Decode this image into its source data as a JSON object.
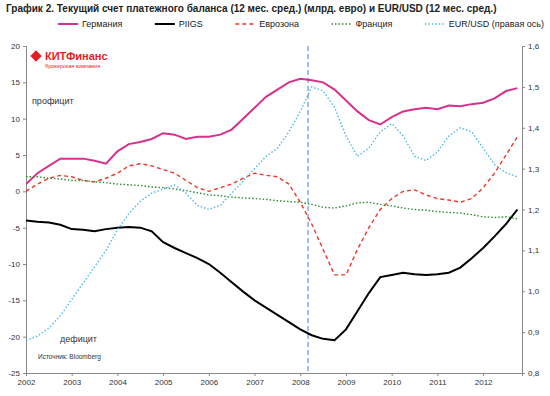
{
  "chart_data": {
    "type": "line",
    "title": "График 2. Текущий счет платежного баланса (12 мес. сред.) (млрд. евро) и EUR/USD (12 мес. сред.)",
    "logo": "КИТФинанс",
    "logo_subtitle": "брокерская компания",
    "annotations": [
      "профицит",
      "дефицит",
      "Источник: Bloomberg"
    ],
    "vline_x": 2008.17,
    "legend": "top",
    "grid": false,
    "x": [
      2002,
      2002.25,
      2002.5,
      2002.75,
      2003,
      2003.25,
      2003.5,
      2003.75,
      2004,
      2004.25,
      2004.5,
      2004.75,
      2005,
      2005.25,
      2005.5,
      2005.75,
      2006,
      2006.25,
      2006.5,
      2006.75,
      2007,
      2007.25,
      2007.5,
      2007.75,
      2008,
      2008.25,
      2008.5,
      2008.75,
      2009,
      2009.25,
      2009.5,
      2009.75,
      2010,
      2010.25,
      2010.5,
      2010.75,
      2011,
      2011.25,
      2011.5,
      2011.75,
      2012,
      2012.25,
      2012.5,
      2012.75
    ],
    "xlim": [
      2002,
      2012.85
    ],
    "xticks": [
      2002,
      2003,
      2004,
      2005,
      2006,
      2007,
      2008,
      2009,
      2010,
      2011,
      2012
    ],
    "ylim": [
      -25,
      20
    ],
    "yticks": [
      -25,
      -20,
      -15,
      -10,
      -5,
      0,
      5,
      10,
      15,
      20
    ],
    "y2lim": [
      0.8,
      1.6
    ],
    "y2ticks": [
      {
        "value": 0.8,
        "label": "0,8"
      },
      {
        "value": 0.9,
        "label": "0,9"
      },
      {
        "value": 1.0,
        "label": "1,0"
      },
      {
        "value": 1.1,
        "label": "1,1"
      },
      {
        "value": 1.2,
        "label": "1,2"
      },
      {
        "value": 1.3,
        "label": "1,3"
      },
      {
        "value": 1.4,
        "label": "1,4"
      },
      {
        "value": 1.5,
        "label": "1,5"
      },
      {
        "value": 1.6,
        "label": "1,6"
      }
    ],
    "series": [
      {
        "name": "Германия",
        "color": "#d6318c",
        "line_style": "solid",
        "values": [
          1,
          2.5,
          3.5,
          4.5,
          4.5,
          4.5,
          4.2,
          3.8,
          5.5,
          6.5,
          6.8,
          7.2,
          8,
          7.8,
          7.2,
          7.5,
          7.5,
          7.8,
          8.5,
          10,
          11.5,
          13,
          14,
          15,
          15.5,
          15.3,
          15,
          14,
          12.5,
          11,
          9.8,
          9.2,
          10.2,
          11,
          11.3,
          11.5,
          11.3,
          11.8,
          11.7,
          12,
          12.2,
          12.8,
          13.8,
          14.2
        ]
      },
      {
        "name": "PIIGS",
        "color": "#000000",
        "line_style": "solid",
        "values": [
          -4,
          -4.2,
          -4.3,
          -4.6,
          -5.2,
          -5.3,
          -5.5,
          -5.2,
          -5,
          -4.9,
          -5,
          -5.5,
          -7,
          -7.8,
          -8.5,
          -9.2,
          -10,
          -11.2,
          -12.5,
          -13.8,
          -15,
          -16,
          -17,
          -18,
          -19,
          -19.8,
          -20.3,
          -20.5,
          -19,
          -16.5,
          -14,
          -11.8,
          -11.5,
          -11.2,
          -11.4,
          -11.5,
          -11.4,
          -11.2,
          -10.5,
          -9.2,
          -7.8,
          -6.2,
          -4.5,
          -2.5
        ]
      },
      {
        "name": "Еврозона",
        "color": "#e8392a",
        "line_style": "dashed",
        "values": [
          0,
          1,
          1.8,
          2.2,
          2.0,
          1.5,
          1.3,
          1.8,
          2.5,
          3.5,
          3.8,
          3.5,
          3.0,
          2.5,
          1.5,
          0.5,
          0,
          0.5,
          1.0,
          1.8,
          2.5,
          2.2,
          2.0,
          1.0,
          -1.5,
          -4.5,
          -8,
          -11.5,
          -11.5,
          -8,
          -5,
          -2.5,
          -1,
          0,
          0.2,
          -0.5,
          -1,
          -1.2,
          -1.5,
          -1,
          0.5,
          2.5,
          5,
          7.5
        ]
      },
      {
        "name": "Франция",
        "color": "#2e8b2e",
        "line_style": "dotted",
        "values": [
          2.0,
          2.0,
          1.8,
          1.7,
          1.5,
          1.5,
          1.3,
          1.2,
          1.0,
          0.9,
          0.8,
          0.6,
          0.5,
          0.3,
          0.1,
          -0.2,
          -0.5,
          -0.6,
          -0.8,
          -0.9,
          -1.0,
          -1.1,
          -1.3,
          -1.4,
          -1.5,
          -1.8,
          -2.2,
          -2.3,
          -2.0,
          -1.6,
          -1.5,
          -1.8,
          -2.0,
          -2.3,
          -2.5,
          -2.6,
          -2.8,
          -2.9,
          -3.0,
          -3.2,
          -3.5,
          -3.6,
          -3.5,
          -3.8
        ]
      },
      {
        "name": "EUR/USD (правая ось)",
        "color": "#4fb8e8",
        "line_style": "dotted",
        "axis": "y2",
        "values": [
          0.88,
          0.89,
          0.91,
          0.94,
          0.98,
          1.02,
          1.06,
          1.1,
          1.15,
          1.19,
          1.22,
          1.24,
          1.25,
          1.26,
          1.24,
          1.21,
          1.2,
          1.21,
          1.24,
          1.27,
          1.3,
          1.33,
          1.35,
          1.39,
          1.44,
          1.5,
          1.49,
          1.45,
          1.38,
          1.33,
          1.35,
          1.39,
          1.41,
          1.38,
          1.33,
          1.32,
          1.34,
          1.38,
          1.4,
          1.39,
          1.35,
          1.31,
          1.29,
          1.28
        ]
      }
    ]
  }
}
